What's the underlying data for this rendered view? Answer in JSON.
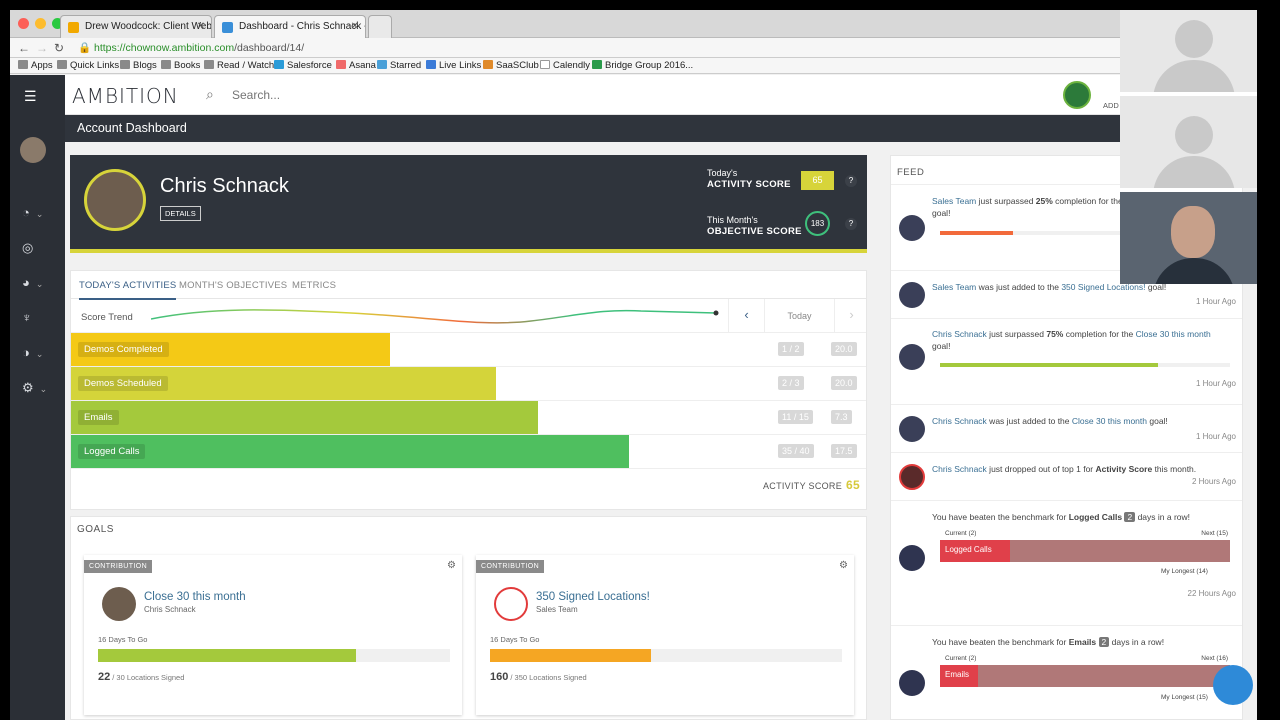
{
  "browser": {
    "tabs": [
      {
        "title": "Drew Woodcock: Client Webi..."
      },
      {
        "title": "Dashboard - Chris Schnack - ..."
      }
    ],
    "url_host": "https://chownow.ambition.com",
    "url_path": "/dashboard/14/",
    "bookmarks": [
      "Apps",
      "Quick Links",
      "Blogs",
      "Books",
      "Read / Watch",
      "Salesforce",
      "Asana",
      "Starred",
      "Live Links",
      "SaaSClub",
      "Calendly",
      "Bridge Group 2016..."
    ]
  },
  "app": {
    "logo": "AMBITION",
    "search_placeholder": "Search...",
    "page_title": "Account Dashboard",
    "header_right": "ADD NEW PROGRESS"
  },
  "profile": {
    "name": "Chris Schnack",
    "details_label": "DETAILS",
    "activity_label_1": "Today's",
    "activity_label_2": "ACTIVITY SCORE",
    "activity_score": "65",
    "objective_label_1": "This Month's",
    "objective_label_2": "OBJECTIVE SCORE",
    "objective_score": "183",
    "help": "?"
  },
  "activities": {
    "tabs": [
      "TODAY'S ACTIVITIES",
      "MONTH'S OBJECTIVES",
      "METRICS"
    ],
    "trend_label": "Score Trend",
    "nav_prev": "‹",
    "nav_today": "Today",
    "nav_next": "›",
    "rows": [
      {
        "label": "Demos Completed",
        "ratio": "1 / 2",
        "score": "20.0",
        "fraction": 0.5,
        "color": "#f4c916"
      },
      {
        "label": "Demos Scheduled",
        "ratio": "2 / 3",
        "score": "20.0",
        "fraction": 0.667,
        "color": "#d4d43a"
      },
      {
        "label": "Emails",
        "ratio": "11 / 15",
        "score": "7.3",
        "fraction": 0.733,
        "color": "#a4c93c"
      },
      {
        "label": "Logged Calls",
        "ratio": "35 / 40",
        "score": "17.5",
        "fraction": 0.875,
        "color": "#4fbf5f"
      }
    ],
    "total_label": "ACTIVITY SCORE",
    "total": "65"
  },
  "goals": {
    "heading": "GOALS",
    "cards": [
      {
        "tag": "CONTRIBUTION",
        "title": "Close 30 this month",
        "owner": "Chris Schnack",
        "days": "16 Days To Go",
        "count": "22",
        "count_rest": "/ 30 Locations Signed",
        "fraction": 0.733,
        "color": "#a4c93c"
      },
      {
        "tag": "CONTRIBUTION",
        "title": "350 Signed Locations!",
        "owner": "Sales Team",
        "days": "16 Days To Go",
        "count": "160",
        "count_rest": "/ 350 Locations Signed",
        "fraction": 0.457,
        "color": "#f5a623"
      }
    ]
  },
  "feed": {
    "heading": "FEED",
    "items": [
      {
        "a": "Sales Team",
        "b": " just surpassed ",
        "c": "25%",
        "d": " completion for the ",
        "e": "goal!",
        "time": "",
        "progress": 0.25,
        "bar_color": "#f26a3b"
      },
      {
        "a": "Sales Team",
        "b": " was just added to the ",
        "c": "350 Signed Locations!",
        "d": " goal!",
        "time": "1 Hour Ago"
      },
      {
        "a": "Chris Schnack",
        "b": " just surpassed ",
        "c": "75%",
        "d": " completion for the ",
        "e": "Close 30 this month",
        "f": "goal!",
        "time": "1 Hour Ago",
        "progress": 0.75,
        "bar_color": "#a4c93c"
      },
      {
        "a": "Chris Schnack",
        "b": " was just added to the ",
        "c": "Close 30 this month",
        "d": " goal!",
        "time": "1 Hour Ago"
      },
      {
        "a": "Chris Schnack",
        "b": " just dropped out of top 1 for ",
        "c": "Activity Score",
        "d": " this month.",
        "time": "2 Hours Ago"
      },
      {
        "pre": "You have beaten the benchmark for ",
        "metric": "Logged Calls",
        "n": "2",
        "post": " days in a row!",
        "current": "Current (2)",
        "next": "Next (15)",
        "longest": "My Longest (14)",
        "bar_label": "Logged Calls",
        "time": "22 Hours Ago"
      },
      {
        "pre": "You have beaten the benchmark for ",
        "metric": "Emails",
        "n": "2",
        "post": " days in a row!",
        "current": "Current (2)",
        "next": "Next (16)",
        "longest": "My Longest (15)",
        "bar_label": "Emails",
        "time": ""
      }
    ]
  },
  "colors": {
    "nav": "#2b2f36",
    "accent": "#d7d43a",
    "link": "#3a6f93"
  }
}
